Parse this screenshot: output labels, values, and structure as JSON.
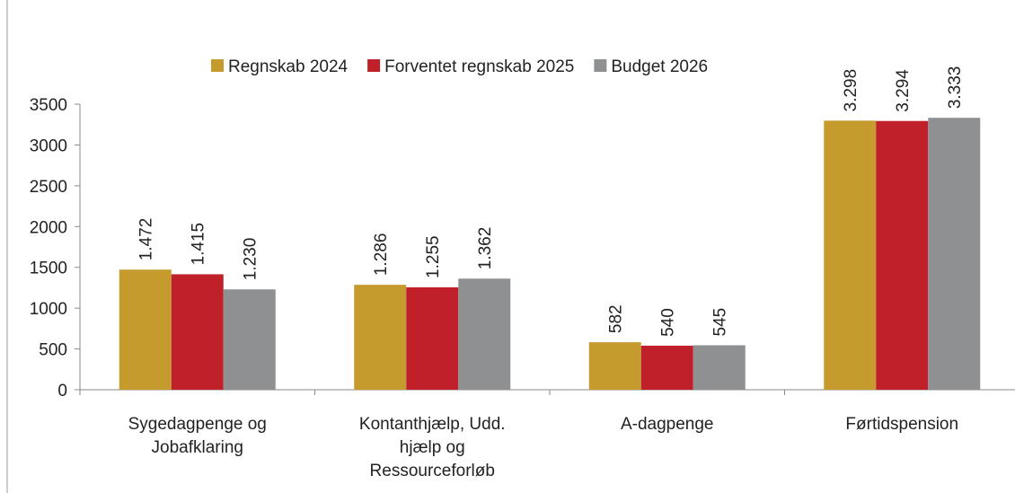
{
  "chart_data": {
    "type": "bar",
    "categories": [
      "Sygedagpenge og Jobafklaring",
      "Kontanthjælp, Udd. hjælp og Ressourceforløb",
      "A-dagpenge",
      "Førtidspension"
    ],
    "series": [
      {
        "name": "Regnskab 2024",
        "color": "#c59b2e",
        "values": [
          1472,
          1286,
          582,
          3298
        ],
        "value_labels": [
          "1.472",
          "1.286",
          "582",
          "3.298"
        ]
      },
      {
        "name": "Forventet regnskab 2025",
        "color": "#c0202a",
        "values": [
          1415,
          1255,
          540,
          3294
        ],
        "value_labels": [
          "1.415",
          "1.255",
          "540",
          "3.294"
        ]
      },
      {
        "name": "Budget 2026",
        "color": "#8f9091",
        "values": [
          1230,
          1362,
          545,
          3333
        ],
        "value_labels": [
          "1.230",
          "1.362",
          "545",
          "3.333"
        ]
      }
    ],
    "ylim": [
      0,
      3500
    ],
    "yticks": [
      0,
      500,
      1000,
      1500,
      2000,
      2500,
      3000,
      3500
    ],
    "grid": false,
    "legend": "top"
  }
}
